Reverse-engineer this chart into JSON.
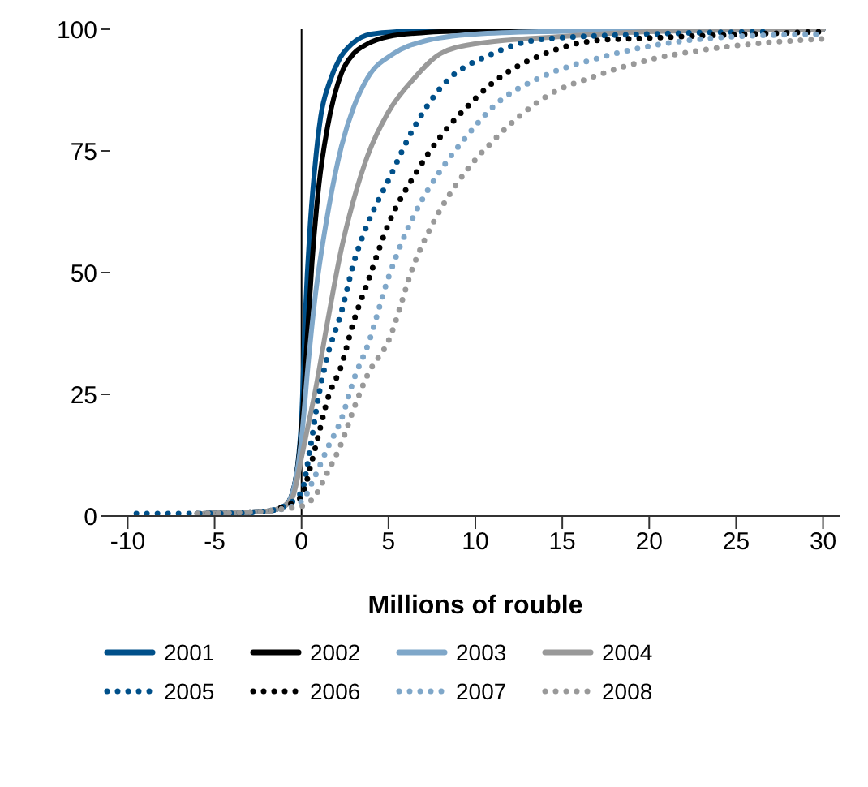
{
  "chart_data": {
    "type": "line",
    "xlabel": "Millions of rouble",
    "xlim": [
      -11,
      31
    ],
    "xticks": [
      -10,
      -5,
      0,
      5,
      10,
      15,
      20,
      25,
      30
    ],
    "ylim": [
      0,
      100
    ],
    "yticks": [
      0,
      25,
      50,
      75,
      100
    ],
    "grid": false,
    "legend": "bottom",
    "ref_lines": [
      {
        "axis": "x",
        "value": 0,
        "color": "#000000"
      }
    ],
    "series": [
      {
        "name": "2001",
        "color": "#00508a",
        "line_style": "solid",
        "x": [
          -6,
          -2,
          -1,
          -0.5,
          0,
          0.2,
          0.5,
          0.75,
          1.1,
          1.6,
          2.2,
          2.9,
          4,
          6,
          10,
          20,
          30
        ],
        "values": [
          0.5,
          1,
          2,
          5,
          20,
          40,
          60,
          71,
          82,
          89,
          94,
          97,
          99,
          99.6,
          100,
          100,
          100
        ]
      },
      {
        "name": "2002",
        "color": "#000000",
        "line_style": "solid",
        "x": [
          -6,
          -2,
          -1,
          -0.5,
          0,
          0.3,
          0.6,
          1,
          1.5,
          2.3,
          3,
          3.8,
          5,
          7,
          10,
          20,
          30
        ],
        "values": [
          0.5,
          1,
          2,
          5,
          18,
          35,
          52,
          68,
          80,
          91,
          95,
          97,
          98.5,
          99.3,
          99.7,
          100,
          100
        ]
      },
      {
        "name": "2003",
        "color": "#7fa7c9",
        "line_style": "solid",
        "x": [
          -6,
          -2,
          -1,
          -0.5,
          0,
          0.4,
          0.75,
          1.5,
          2.3,
          3,
          3.8,
          5.3,
          7,
          10,
          15,
          20,
          30
        ],
        "values": [
          0.5,
          1,
          2,
          5,
          16,
          32,
          44,
          62,
          76,
          84,
          90,
          95,
          97.5,
          99,
          99.6,
          100,
          100
        ]
      },
      {
        "name": "2004",
        "color": "#999999",
        "line_style": "solid",
        "x": [
          -6,
          -2,
          -1,
          -0.5,
          0,
          0.4,
          0.75,
          1.5,
          2.3,
          3,
          3.8,
          5,
          6.5,
          8,
          10,
          15,
          20,
          30
        ],
        "values": [
          0.5,
          1,
          2,
          4,
          12,
          19,
          25,
          40,
          55,
          65,
          74,
          83,
          90,
          95,
          97,
          98.5,
          99.5,
          100
        ]
      },
      {
        "name": "2005",
        "color": "#00508a",
        "line_style": "dotted",
        "x": [
          -9.5,
          -5,
          -2,
          -1,
          0,
          0.5,
          1,
          1.5,
          2.3,
          3,
          3.8,
          5,
          6.5,
          8,
          11,
          14,
          20,
          27
        ],
        "values": [
          0.5,
          0.5,
          1,
          2,
          5,
          14,
          25,
          33,
          42,
          52,
          60,
          69,
          80,
          88,
          95,
          98,
          99,
          99.5
        ]
      },
      {
        "name": "2006",
        "color": "#000000",
        "line_style": "dotted",
        "x": [
          -6,
          -2,
          -1,
          0,
          0.5,
          1,
          1.5,
          2.3,
          3,
          3.8,
          5,
          6.5,
          8,
          9.5,
          11,
          14,
          17,
          20,
          30
        ],
        "values": [
          0.5,
          1,
          2,
          4,
          10,
          17,
          24,
          31,
          40,
          48,
          60,
          70,
          78,
          84,
          89,
          95,
          97.7,
          98.2,
          99.5
        ]
      },
      {
        "name": "2007",
        "color": "#7fa7c9",
        "line_style": "dotted",
        "x": [
          -6,
          -2,
          -1,
          0,
          0.75,
          1.5,
          2.3,
          3,
          3.8,
          5,
          6.5,
          8,
          9.5,
          11,
          14,
          17,
          20,
          24.5,
          30
        ],
        "values": [
          0.5,
          1,
          1.5,
          3,
          8,
          14,
          20,
          28,
          35,
          49,
          62,
          71,
          78,
          84,
          90.5,
          94,
          96.5,
          98.4,
          99
        ]
      },
      {
        "name": "2008",
        "color": "#999999",
        "line_style": "dotted",
        "x": [
          -6,
          -2,
          -1,
          0,
          0.75,
          1.5,
          2.3,
          3,
          3.8,
          5,
          6.5,
          8,
          9.5,
          11,
          14,
          17,
          20,
          23,
          26,
          30
        ],
        "values": [
          0.5,
          1,
          1.5,
          2,
          4,
          9,
          15,
          22,
          29,
          36,
          52,
          63,
          71,
          77,
          86,
          90.5,
          93.7,
          95.7,
          97,
          98
        ]
      }
    ]
  }
}
